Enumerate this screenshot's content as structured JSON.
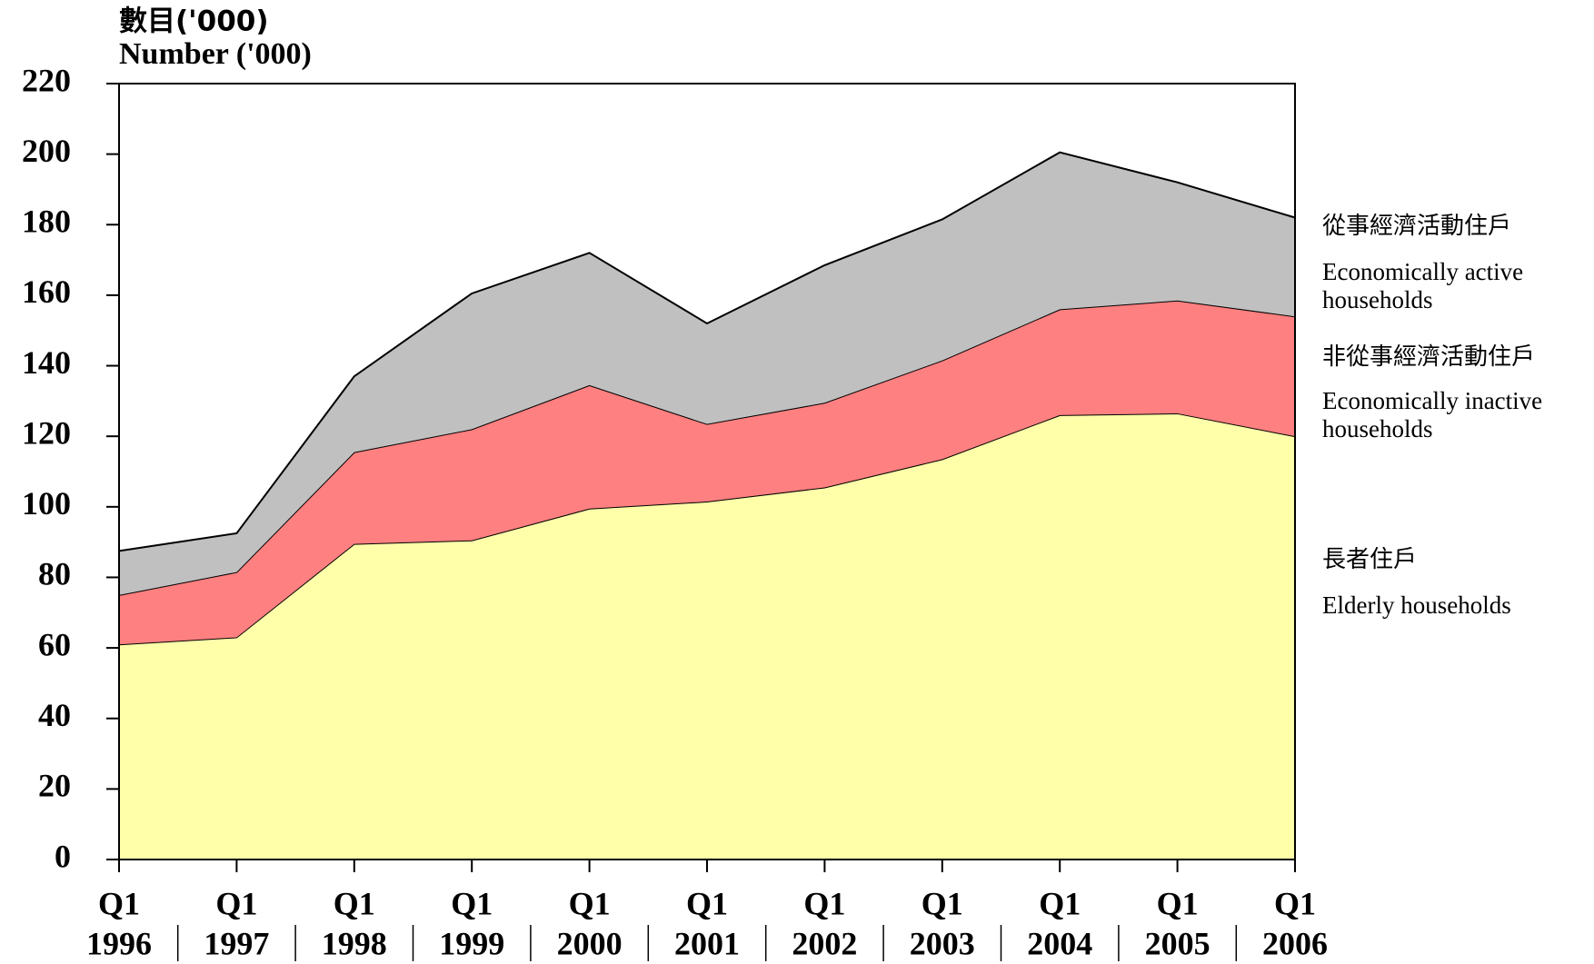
{
  "chart_data": {
    "type": "stacked-area",
    "y_label_zh": "數目('000)",
    "y_label": "Number ('000)",
    "categories": [
      {
        "quarter": "Q1",
        "year": "1996"
      },
      {
        "quarter": "Q1",
        "year": "1997"
      },
      {
        "quarter": "Q1",
        "year": "1998"
      },
      {
        "quarter": "Q1",
        "year": "1999"
      },
      {
        "quarter": "Q1",
        "year": "2000"
      },
      {
        "quarter": "Q1",
        "year": "2001"
      },
      {
        "quarter": "Q1",
        "year": "2002"
      },
      {
        "quarter": "Q1",
        "year": "2003"
      },
      {
        "quarter": "Q1",
        "year": "2004"
      },
      {
        "quarter": "Q1",
        "year": "2005"
      },
      {
        "quarter": "Q1",
        "year": "2006"
      }
    ],
    "series": [
      {
        "name": "Elderly households",
        "name_zh": "長者住戶",
        "color": "#ffffaa",
        "values": [
          61,
          63,
          89.5,
          90.5,
          99.5,
          101.5,
          105.5,
          113.5,
          126,
          126.5,
          120
        ]
      },
      {
        "name": "Economically inactive households",
        "name_zh": "非從事經濟活動住戶",
        "color": "#ff8080",
        "values": [
          14,
          18.5,
          26,
          31.5,
          35,
          22,
          24,
          28,
          30,
          32,
          34
        ]
      },
      {
        "name": "Economically active households",
        "name_zh": "從事經濟活動住戶",
        "color": "#c0c0c0",
        "values": [
          12.5,
          11,
          21.5,
          38.5,
          37.5,
          28.5,
          39,
          40,
          44.5,
          33.5,
          28
        ]
      }
    ],
    "ylim": [
      0,
      220
    ],
    "yticks": [
      0,
      20,
      40,
      60,
      80,
      100,
      120,
      140,
      160,
      180,
      200,
      220
    ]
  }
}
